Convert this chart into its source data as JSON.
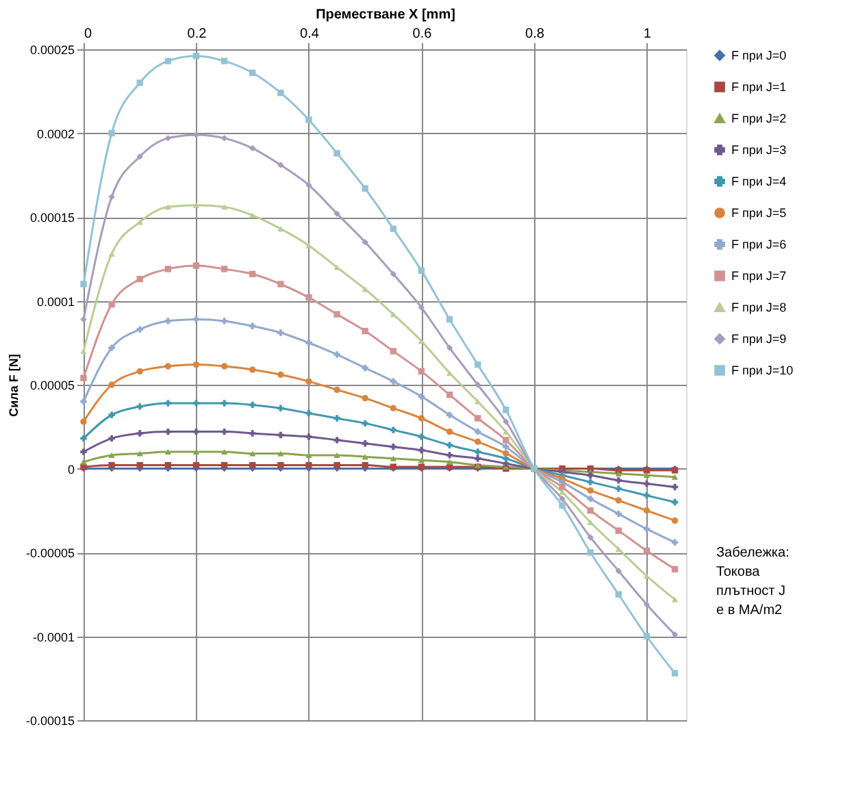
{
  "chart_data": {
    "type": "line",
    "xlabel": "Преместване X [mm]",
    "ylabel": "Сила F [N]",
    "x": [
      0,
      0.05,
      0.1,
      0.15,
      0.2,
      0.25,
      0.3,
      0.35,
      0.4,
      0.45,
      0.5,
      0.55,
      0.6,
      0.65,
      0.7,
      0.75,
      0.8,
      0.85,
      0.9,
      0.95,
      1.0,
      1.05
    ],
    "xlim": [
      0,
      1.07
    ],
    "xticks": [
      0,
      0.2,
      0.4,
      0.6,
      0.8,
      1
    ],
    "ylim": [
      -0.00015,
      0.00025
    ],
    "yticks": [
      {
        "value": -0.00015,
        "label": "-0.00015"
      },
      {
        "value": -0.0001,
        "label": "-0.0001"
      },
      {
        "value": -5e-05,
        "label": "-0.00005"
      },
      {
        "value": 0,
        "label": "0"
      },
      {
        "value": 5e-05,
        "label": "0.00005"
      },
      {
        "value": 0.0001,
        "label": "0.0001"
      },
      {
        "value": 0.00015,
        "label": "0.00015"
      },
      {
        "value": 0.0002,
        "label": "0.0002"
      },
      {
        "value": 0.00025,
        "label": "0.00025"
      }
    ],
    "grid": true,
    "legend": "right",
    "line_style": "solid",
    "annotations": [
      "Забележка: Токова плътност J е в MA/m2"
    ],
    "series": [
      {
        "name": "F при J=0",
        "color": "#4572a7",
        "marker": "diamond",
        "values": [
          0,
          0,
          0,
          0,
          0,
          0,
          0,
          0,
          0,
          0,
          0,
          0,
          0,
          0,
          0,
          0,
          0,
          0,
          0,
          0,
          0,
          0
        ]
      },
      {
        "name": "F при J=1",
        "color": "#aa4643",
        "marker": "square",
        "values": [
          1e-06,
          2e-06,
          2e-06,
          2e-06,
          2e-06,
          2e-06,
          2e-06,
          2e-06,
          2e-06,
          2e-06,
          2e-06,
          1e-06,
          1e-06,
          1e-06,
          1e-06,
          0,
          0,
          0,
          0,
          -1e-06,
          -1e-06,
          -1e-06
        ]
      },
      {
        "name": "F при J=2",
        "color": "#89a54e",
        "marker": "triangle",
        "values": [
          4e-06,
          8e-06,
          9e-06,
          1e-05,
          1e-05,
          1e-05,
          9e-06,
          9e-06,
          8e-06,
          8e-06,
          7e-06,
          6e-06,
          5e-06,
          4e-06,
          2e-06,
          1e-06,
          0,
          -1e-06,
          -2e-06,
          -3e-06,
          -4e-06,
          -5e-06
        ]
      },
      {
        "name": "F при J=3",
        "color": "#71588f",
        "marker": "cross",
        "values": [
          1e-05,
          1.8e-05,
          2.1e-05,
          2.2e-05,
          2.2e-05,
          2.2e-05,
          2.1e-05,
          2e-05,
          1.9e-05,
          1.7e-05,
          1.5e-05,
          1.3e-05,
          1.1e-05,
          8e-06,
          6e-06,
          3e-06,
          0,
          -2e-06,
          -4e-06,
          -7e-06,
          -9e-06,
          -1.1e-05
        ]
      },
      {
        "name": "F при J=4",
        "color": "#4198af",
        "marker": "cross",
        "values": [
          1.8e-05,
          3.2e-05,
          3.7e-05,
          3.9e-05,
          3.9e-05,
          3.9e-05,
          3.8e-05,
          3.6e-05,
          3.3e-05,
          3e-05,
          2.7e-05,
          2.3e-05,
          1.9e-05,
          1.4e-05,
          1e-05,
          6e-06,
          0,
          -4e-06,
          -8e-06,
          -1.2e-05,
          -1.6e-05,
          -2e-05
        ]
      },
      {
        "name": "F при J=5",
        "color": "#db843d",
        "marker": "circle",
        "values": [
          2.8e-05,
          5e-05,
          5.8e-05,
          6.1e-05,
          6.2e-05,
          6.1e-05,
          5.9e-05,
          5.6e-05,
          5.2e-05,
          4.7e-05,
          4.2e-05,
          3.6e-05,
          3e-05,
          2.2e-05,
          1.6e-05,
          9e-06,
          0,
          -6e-06,
          -1.3e-05,
          -1.9e-05,
          -2.5e-05,
          -3.1e-05
        ]
      },
      {
        "name": "F при J=6",
        "color": "#93a9cf",
        "marker": "cross",
        "values": [
          4e-05,
          7.2e-05,
          8.3e-05,
          8.8e-05,
          8.9e-05,
          8.8e-05,
          8.5e-05,
          8.1e-05,
          7.5e-05,
          6.8e-05,
          6e-05,
          5.2e-05,
          4.3e-05,
          3.2e-05,
          2.2e-05,
          1.3e-05,
          0,
          -8e-06,
          -1.8e-05,
          -2.7e-05,
          -3.6e-05,
          -4.4e-05
        ]
      },
      {
        "name": "F при J=7",
        "color": "#d19392",
        "marker": "square",
        "values": [
          5.4e-05,
          9.8e-05,
          0.000113,
          0.000119,
          0.000121,
          0.000119,
          0.000116,
          0.00011,
          0.000102,
          9.2e-05,
          8.2e-05,
          7e-05,
          5.8e-05,
          4.4e-05,
          3e-05,
          1.7e-05,
          0,
          -1.1e-05,
          -2.5e-05,
          -3.7e-05,
          -4.9e-05,
          -6e-05
        ]
      },
      {
        "name": "F при J=8",
        "color": "#b9cd96",
        "marker": "triangle",
        "values": [
          7e-05,
          0.000128,
          0.000147,
          0.000156,
          0.000157,
          0.000156,
          0.000151,
          0.000143,
          0.000133,
          0.00012,
          0.000107,
          9.2e-05,
          7.6e-05,
          5.7e-05,
          4e-05,
          2.2e-05,
          0,
          -1.4e-05,
          -3.2e-05,
          -4.8e-05,
          -6.4e-05,
          -7.8e-05
        ]
      },
      {
        "name": "F при J=9",
        "color": "#a99bbd",
        "marker": "diamond",
        "values": [
          8.9e-05,
          0.000162,
          0.000186,
          0.000197,
          0.000199,
          0.000197,
          0.000191,
          0.000181,
          0.000169,
          0.000152,
          0.000135,
          0.000116,
          9.6e-05,
          7.2e-05,
          5e-05,
          2.8e-05,
          0,
          -1.8e-05,
          -4.1e-05,
          -6.1e-05,
          -8.1e-05,
          -9.9e-05
        ]
      },
      {
        "name": "F при J=10",
        "color": "#92c3d5",
        "marker": "square",
        "values": [
          0.00011,
          0.0002,
          0.00023,
          0.000243,
          0.000246,
          0.000243,
          0.000236,
          0.000224,
          0.000208,
          0.000188,
          0.000167,
          0.000143,
          0.000118,
          8.9e-05,
          6.2e-05,
          3.5e-05,
          0,
          -2.2e-05,
          -5e-05,
          -7.5e-05,
          -0.0001,
          -0.000122
        ]
      }
    ]
  }
}
